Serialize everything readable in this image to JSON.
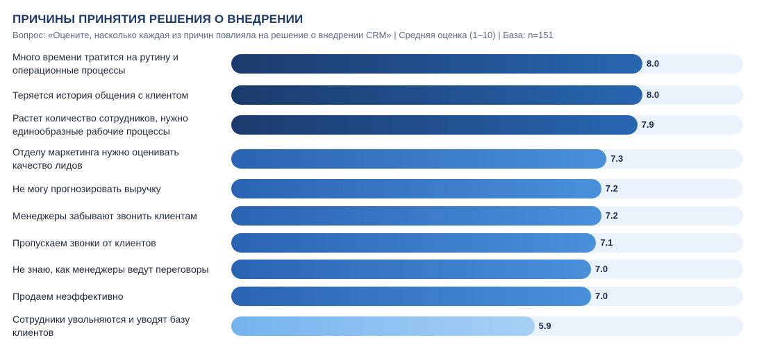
{
  "title": "ПРИЧИНЫ ПРИНЯТИЯ РЕШЕНИЯ О ВНЕДРЕНИИ",
  "subtitle": "Вопрос: «Оцените, насколько каждая из причин повлияла на решение о внедрении CRM» | Средняя оценка (1–10) | База: n=151",
  "colors": {
    "dark_start": "#1b3a6c",
    "dark_end": "#2866b0",
    "mid_start": "#2a63b2",
    "mid_end": "#4a90da",
    "light_start": "#74b3ee",
    "light_end": "#a8d0f5",
    "track": "#eaf2fc"
  },
  "chart_data": {
    "type": "bar",
    "orientation": "horizontal",
    "xlim": [
      0,
      10
    ],
    "categories": [
      "Много времени тратится на рутину и операционные процессы",
      "Теряется история общения с клиентом",
      "Растет количество сотрудников, нужно единообразные рабочие процессы",
      "Отделу маркетинга нужно оценивать качество лидов",
      "Не могу прогнозировать выручку",
      "Менеджеры забывают звонить клиентам",
      "Пропускаем звонки от клиентов",
      "Не знаю, как менеджеры ведут переговоры",
      "Продаем неэффективно",
      "Сотрудники увольняются и уводят базу клиентов"
    ],
    "values": [
      8.0,
      8.0,
      7.9,
      7.3,
      7.2,
      7.2,
      7.1,
      7.0,
      7.0,
      5.9
    ],
    "value_labels": [
      "8.0",
      "8.0",
      "7.9",
      "7.3",
      "7.2",
      "7.2",
      "7.1",
      "7.0",
      "7.0",
      "5.9"
    ],
    "color_group": [
      "dark",
      "dark",
      "dark",
      "mid",
      "mid",
      "mid",
      "mid",
      "mid",
      "mid",
      "light"
    ]
  }
}
